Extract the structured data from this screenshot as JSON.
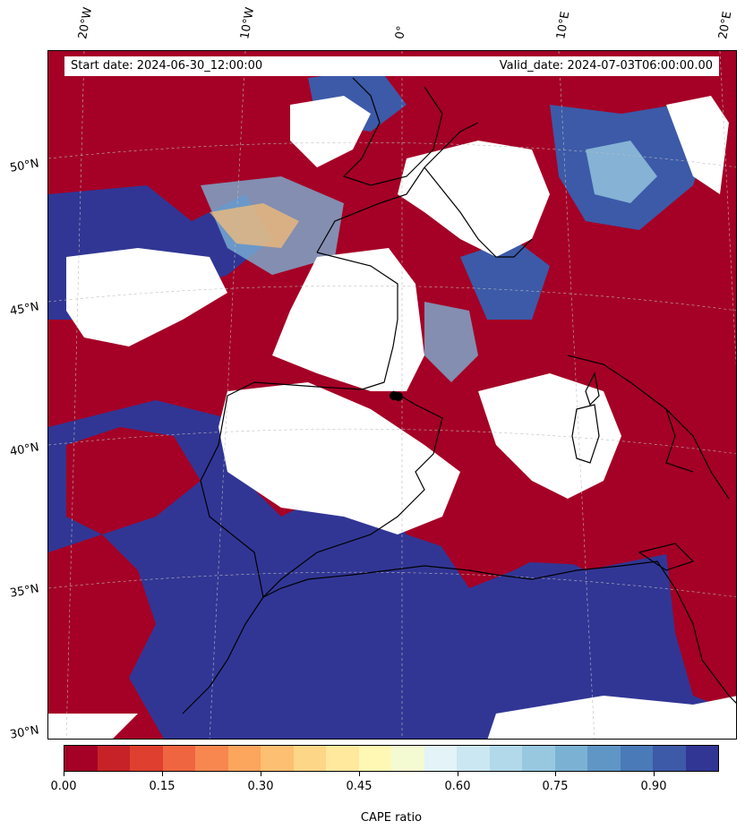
{
  "header": {
    "start_date": "Start date: 2024-06-30_12:00:00",
    "valid_date": "Valid_date: 2024-07-03T06:00:00.00"
  },
  "longitude_labels": [
    "20°W",
    "10°W",
    "0°",
    "10°E",
    "20°E"
  ],
  "latitude_labels": [
    "50°N",
    "45°N",
    "40°N",
    "35°N",
    "30°N"
  ],
  "colorbar": {
    "label": "CAPE ratio",
    "ticks": [
      "0.00",
      "0.15",
      "0.30",
      "0.45",
      "0.60",
      "0.75",
      "0.90"
    ],
    "colors": [
      "#a50026",
      "#c62227",
      "#de3f2e",
      "#ef6540",
      "#f7874f",
      "#fca55d",
      "#fdbf71",
      "#fed687",
      "#fee99d",
      "#fff8b4",
      "#f4fbd2",
      "#e3f3f8",
      "#cbe7f1",
      "#b1d9ea",
      "#97c8e0",
      "#7bb2d4",
      "#5f96c6",
      "#4a7ab7",
      "#3c5aa8",
      "#313695"
    ]
  },
  "map": {
    "colors": {
      "low": "#a50026",
      "high": "#313695",
      "mid": "#7bb2d4",
      "empty": "#ffffff",
      "coast": "#000000"
    },
    "markers": [
      "station-dot"
    ]
  }
}
